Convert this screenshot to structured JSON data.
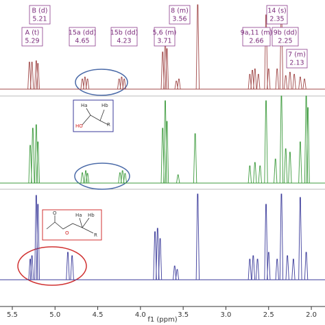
{
  "chart_data": [
    {
      "type": "spectrum",
      "color": "#a04848",
      "ylim": [
        0,
        130
      ],
      "x": [
        5.3,
        5.27,
        5.22,
        5.2,
        4.68,
        4.65,
        4.62,
        4.25,
        4.22,
        4.19,
        3.74,
        3.71,
        3.69,
        3.58,
        3.55,
        3.33,
        2.72,
        2.69,
        2.66,
        2.62,
        2.53,
        2.5,
        2.4,
        2.35,
        2.3,
        2.25,
        2.2,
        2.13,
        2.08
      ],
      "values": [
        40,
        40,
        42,
        38,
        15,
        18,
        15,
        15,
        18,
        15,
        55,
        75,
        60,
        12,
        15,
        125,
        22,
        28,
        30,
        22,
        110,
        30,
        30,
        120,
        20,
        25,
        22,
        18,
        15
      ],
      "annotations": [
        [
          "B (d)",
          "5.21"
        ],
        [
          "A (t)",
          "5.29"
        ],
        [
          "15a (dd)",
          "4.65"
        ],
        [
          "15b (dd)",
          "4.23"
        ],
        [
          "8 (m)",
          "3.56"
        ],
        [
          "5,6 (m)",
          "3.71"
        ],
        [
          "14 (s)",
          "2.35"
        ],
        [
          "9a,11 (m)",
          "2.66"
        ],
        [
          "9b (dd)",
          "2.25"
        ],
        [
          "7 (m)",
          "2.13"
        ]
      ]
    },
    {
      "type": "spectrum",
      "color": "#3c9a3c",
      "ylim": [
        0,
        127
      ],
      "x": [
        5.29,
        5.26,
        5.22,
        5.2,
        4.68,
        4.64,
        4.62,
        4.24,
        4.21,
        4.18,
        3.74,
        3.71,
        3.69,
        3.56,
        3.36,
        2.72,
        2.66,
        2.6,
        2.53,
        2.42,
        2.35,
        2.3,
        2.25,
        2.13,
        2.06,
        2.04
      ],
      "values": [
        55,
        80,
        85,
        60,
        15,
        18,
        14,
        15,
        18,
        14,
        80,
        120,
        90,
        12,
        72,
        25,
        30,
        25,
        120,
        35,
        127,
        50,
        45,
        60,
        127,
        110
      ],
      "structure": [
        "Ha",
        "Hb",
        "HO",
        "R"
      ]
    },
    {
      "type": "spectrum",
      "color": "#3a3a9a",
      "ylim": [
        0,
        133
      ],
      "x": [
        5.29,
        5.27,
        5.22,
        5.2,
        4.85,
        4.8,
        3.83,
        3.8,
        3.77,
        3.6,
        3.57,
        3.33,
        2.72,
        2.68,
        2.63,
        2.53,
        2.5,
        2.4,
        2.35,
        2.28,
        2.21,
        2.13,
        2.06
      ],
      "values": [
        30,
        35,
        123,
        110,
        40,
        35,
        70,
        75,
        60,
        20,
        15,
        125,
        30,
        35,
        30,
        110,
        40,
        30,
        125,
        35,
        30,
        120,
        40
      ],
      "structure": [
        "O",
        "O",
        "Ha",
        "Hb",
        "R"
      ],
      "xlim": [
        5.644,
        1.84
      ],
      "xticks": [
        5.5,
        {
          "value": 5,
          "label": "5.0"
        },
        4.5,
        {
          "value": 4,
          "label": "4.0"
        },
        3.5,
        {
          "value": 3,
          "label": "3.0"
        },
        2.5,
        {
          "value": 2,
          "label": "2.0"
        }
      ],
      "xlabel": "f1 (ppm)"
    }
  ]
}
